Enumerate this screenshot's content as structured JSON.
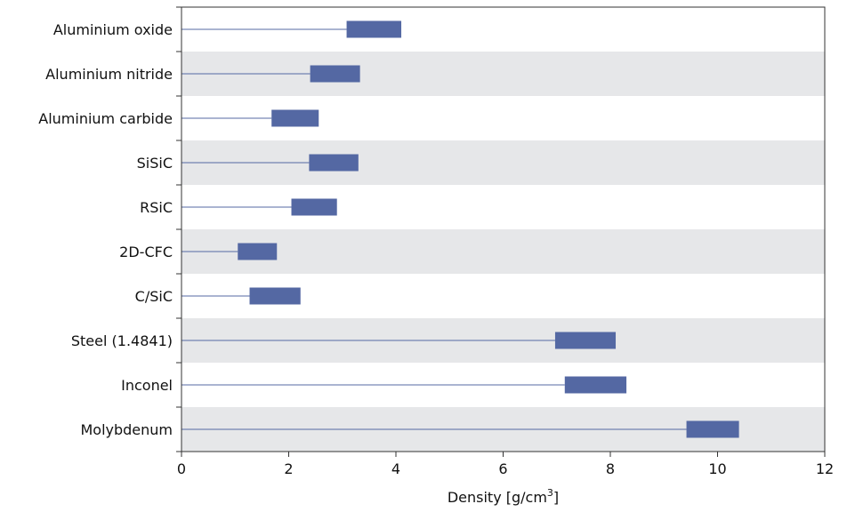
{
  "chart_data": {
    "type": "bar",
    "subtype": "floating-range",
    "categories": [
      "Aluminium oxide",
      "Aluminium nitride",
      "Aluminium carbide",
      "SiSiC",
      "RSiC",
      "2D-CFC",
      "C/SiC",
      "Steel (1.4841)",
      "Inconel",
      "Molybdenum"
    ],
    "ranges": [
      [
        3.08,
        4.1
      ],
      [
        2.4,
        3.33
      ],
      [
        1.68,
        2.56
      ],
      [
        2.38,
        3.3
      ],
      [
        2.05,
        2.9
      ],
      [
        1.05,
        1.78
      ],
      [
        1.27,
        2.22
      ],
      [
        6.97,
        8.1
      ],
      [
        7.15,
        8.3
      ],
      [
        9.42,
        10.4
      ]
    ],
    "xlabel_main": "Density [g/cm",
    "xlabel_sup": "3",
    "xlabel_end": "]",
    "xlim": [
      0,
      12
    ],
    "xticks": [
      "0",
      "2",
      "4",
      "6",
      "8",
      "10",
      "12"
    ],
    "bar_color": "#5468a3",
    "line_color": "#5468a3",
    "band_color": "#e6e7e9",
    "grid": false,
    "legend": "none"
  }
}
